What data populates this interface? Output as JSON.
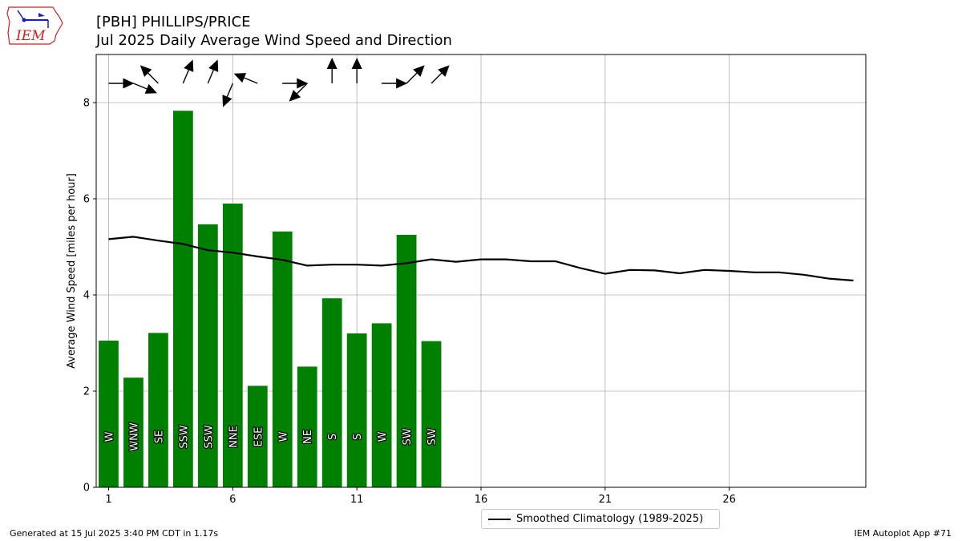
{
  "header": {
    "logo_text": "IEM",
    "title_line1": "[PBH] PHILLIPS/PRICE",
    "title_line2": "Jul 2025 Daily Average Wind Speed and Direction"
  },
  "colors": {
    "bar": "#008000",
    "climatology_line": "#000000",
    "grid": "#b0b0b0",
    "logo_red": "#cc2222",
    "logo_blue": "#1a1acc"
  },
  "legend": {
    "label": "Smoothed Climatology (1989-2025)"
  },
  "footer": {
    "left": "Generated at 15 Jul 2025 3:40 PM CDT in 1.17s",
    "right": "IEM Autoplot App #71"
  },
  "chart_data": {
    "type": "bar",
    "ylabel": "Average Wind Speed [miles per hour]",
    "xlabel": "",
    "xlim": [
      0.5,
      31.5
    ],
    "ylim": [
      0,
      9
    ],
    "xticks": [
      1,
      6,
      11,
      16,
      21,
      26
    ],
    "yticks": [
      0,
      2,
      4,
      6,
      8
    ],
    "grid": true,
    "legend_position": "bottom-center",
    "days": [
      1,
      2,
      3,
      4,
      5,
      6,
      7,
      8,
      9,
      10,
      11,
      12,
      13,
      14
    ],
    "values": [
      3.05,
      2.28,
      3.21,
      7.83,
      5.47,
      5.9,
      2.11,
      5.32,
      2.51,
      3.93,
      3.2,
      3.41,
      5.25,
      3.04
    ],
    "directions": [
      "W",
      "WNW",
      "SE",
      "SSW",
      "SSW",
      "NNE",
      "ESE",
      "W",
      "NE",
      "S",
      "S",
      "W",
      "SW",
      "SW"
    ],
    "direction_degrees": [
      270,
      292.5,
      135,
      202.5,
      202.5,
      22.5,
      112.5,
      270,
      45,
      180,
      180,
      270,
      225,
      225
    ],
    "climatology": {
      "name": "Smoothed Climatology (1989-2025)",
      "x": [
        1,
        2,
        3,
        4,
        5,
        6,
        7,
        8,
        9,
        10,
        11,
        12,
        13,
        14,
        15,
        16,
        17,
        18,
        19,
        20,
        21,
        22,
        23,
        24,
        25,
        26,
        27,
        28,
        29,
        30,
        31
      ],
      "y": [
        5.16,
        5.21,
        5.13,
        5.06,
        4.93,
        4.88,
        4.8,
        4.73,
        4.61,
        4.63,
        4.63,
        4.61,
        4.66,
        4.74,
        4.69,
        4.74,
        4.74,
        4.7,
        4.7,
        4.56,
        4.44,
        4.52,
        4.51,
        4.45,
        4.52,
        4.5,
        4.47,
        4.47,
        4.42,
        4.34,
        4.3
      ]
    }
  }
}
